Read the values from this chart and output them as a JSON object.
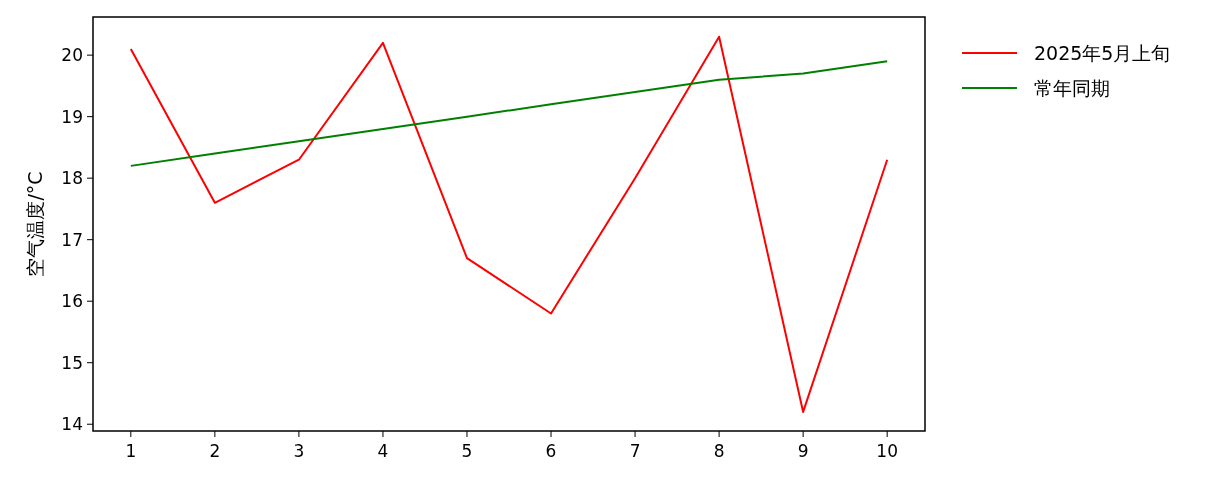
{
  "chart_data": {
    "type": "line",
    "ylabel": "空气温度/°C",
    "x": [
      1,
      2,
      3,
      4,
      5,
      6,
      7,
      8,
      9,
      10
    ],
    "xlim": [
      0.55,
      10.45
    ],
    "xticks": [
      1,
      2,
      3,
      4,
      5,
      6,
      7,
      8,
      9,
      10
    ],
    "ylim": [
      13.89,
      20.62
    ],
    "yticks": [
      14,
      15,
      16,
      17,
      18,
      19,
      20
    ],
    "legend": "top right",
    "series": [
      {
        "name": "2025年5月上旬",
        "color": "#ff0000",
        "values": [
          20.1,
          17.6,
          18.3,
          20.2,
          16.7,
          15.8,
          18.0,
          20.3,
          14.2,
          18.3
        ]
      },
      {
        "name": "常年同期",
        "color": "#008000",
        "values": [
          18.2,
          18.4,
          18.6,
          18.8,
          19.0,
          19.2,
          19.4,
          19.6,
          19.7,
          19.9
        ]
      }
    ]
  }
}
